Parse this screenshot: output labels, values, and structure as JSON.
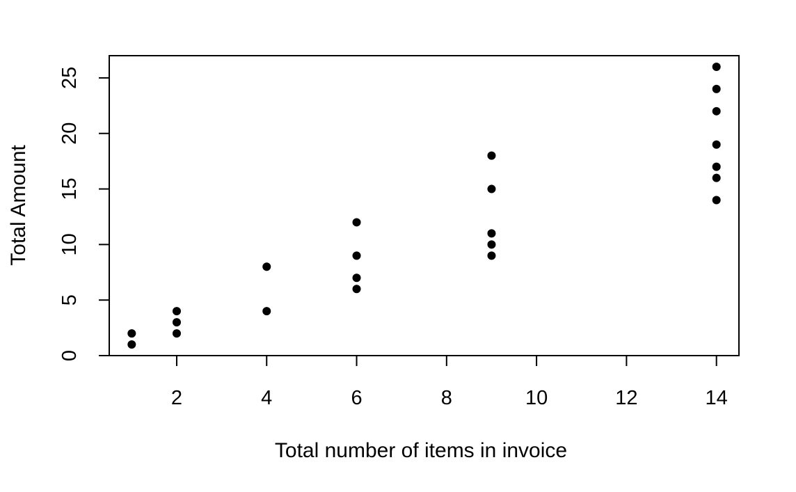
{
  "chart_data": {
    "type": "scatter",
    "title": "",
    "xlabel": "Total number of items in invoice",
    "ylabel": "Total Amount",
    "xlim": [
      0.5,
      14.5
    ],
    "ylim": [
      0,
      27
    ],
    "xticks": [
      2,
      4,
      6,
      8,
      10,
      12,
      14
    ],
    "yticks": [
      0,
      5,
      10,
      15,
      20,
      25
    ],
    "grid": false,
    "legend": "none",
    "marker_color": "#000000",
    "points": [
      {
        "x": 1,
        "y": 1
      },
      {
        "x": 1,
        "y": 2
      },
      {
        "x": 2,
        "y": 2
      },
      {
        "x": 2,
        "y": 3
      },
      {
        "x": 2,
        "y": 4
      },
      {
        "x": 4,
        "y": 4
      },
      {
        "x": 4,
        "y": 8
      },
      {
        "x": 6,
        "y": 6
      },
      {
        "x": 6,
        "y": 7
      },
      {
        "x": 6,
        "y": 9
      },
      {
        "x": 6,
        "y": 12
      },
      {
        "x": 9,
        "y": 9
      },
      {
        "x": 9,
        "y": 10
      },
      {
        "x": 9,
        "y": 11
      },
      {
        "x": 9,
        "y": 15
      },
      {
        "x": 9,
        "y": 18
      },
      {
        "x": 14,
        "y": 14
      },
      {
        "x": 14,
        "y": 16
      },
      {
        "x": 14,
        "y": 17
      },
      {
        "x": 14,
        "y": 19
      },
      {
        "x": 14,
        "y": 22
      },
      {
        "x": 14,
        "y": 24
      },
      {
        "x": 14,
        "y": 26
      }
    ]
  }
}
